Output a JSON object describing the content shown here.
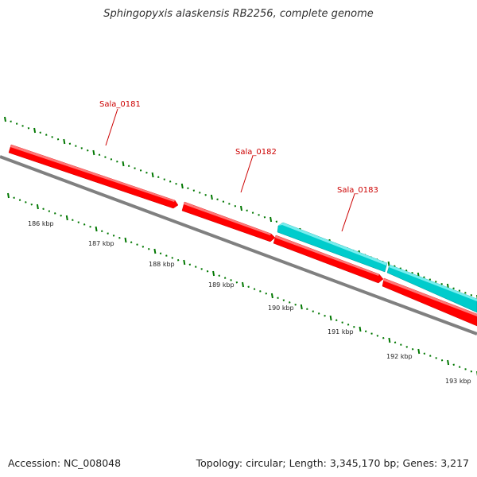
{
  "title": "Sphingopyxis alaskensis RB2256, complete genome",
  "footer": {
    "accession": "Accession: NC_008048",
    "summary": "Topology: circular; Length: 3,345,170 bp; Genes: 3,217"
  },
  "colors": {
    "forward_gene": "#ff0000",
    "reverse_gene": "#00cccc",
    "backbone": "#808080",
    "tick": "#007700",
    "gene_label": "#cc0000"
  },
  "genes": [
    {
      "id": "Sala_0181",
      "label": "Sala_0181",
      "strand": "forward"
    },
    {
      "id": "Sala_0182",
      "label": "Sala_0182",
      "strand": "forward"
    },
    {
      "id": "Sala_0183",
      "label": "Sala_0183",
      "strand": "reverse"
    }
  ],
  "scale_labels": [
    "186 kbp",
    "187 kbp",
    "188 kbp",
    "189 kbp",
    "190 kbp",
    "191 kbp",
    "192 kbp",
    "193 kbp"
  ]
}
